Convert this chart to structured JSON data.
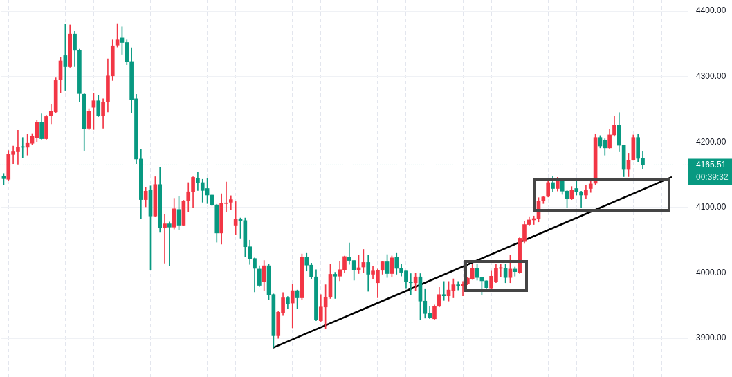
{
  "chart_data": {
    "type": "candlestick",
    "categories": [
      null,
      null,
      null,
      null,
      null,
      null,
      null,
      null,
      null,
      null,
      null,
      null,
      null,
      null,
      null,
      null,
      null,
      null,
      null,
      null,
      null,
      null,
      null,
      null,
      null,
      null,
      null,
      null,
      null,
      null,
      null,
      null,
      null,
      null,
      null,
      null,
      null,
      null,
      null,
      null,
      null,
      null,
      null,
      null,
      null,
      null,
      null,
      null,
      null,
      null,
      null,
      null,
      null,
      null,
      null,
      null,
      null,
      null,
      null,
      null,
      null,
      null,
      null,
      null,
      null,
      null,
      null,
      null,
      null,
      null,
      null,
      null,
      null,
      null,
      null,
      null,
      null,
      null,
      null,
      null,
      null,
      null,
      null,
      null,
      null,
      null,
      null,
      null,
      null,
      null,
      null,
      null,
      null,
      null,
      null,
      null,
      null,
      null,
      null,
      null,
      null,
      null,
      null,
      null,
      null,
      null,
      null,
      null,
      null,
      null,
      null,
      null,
      null,
      null,
      null,
      null,
      null,
      null,
      null,
      null,
      null,
      null,
      null,
      null,
      null,
      null,
      null,
      null,
      null,
      null,
      null,
      null,
      null,
      null,
      null,
      null,
      null,
      null,
      null,
      null,
      null,
      null,
      null,
      null,
      null
    ],
    "ohlc": [
      [
        4148,
        4152,
        4135,
        4144
      ],
      [
        4143,
        4187,
        4141,
        4181
      ],
      [
        4181,
        4194,
        4167,
        4185
      ],
      [
        4185,
        4218,
        4166,
        4192
      ],
      [
        4193,
        4207,
        4176,
        4192
      ],
      [
        4192,
        4212,
        4180,
        4198
      ],
      [
        4198,
        4213,
        4196,
        4209
      ],
      [
        4207,
        4233,
        4200,
        4230
      ],
      [
        4230,
        4243,
        4204,
        4205
      ],
      [
        4205,
        4241,
        4204,
        4239
      ],
      [
        4240,
        4258,
        4228,
        4247
      ],
      [
        4246,
        4298,
        4245,
        4294
      ],
      [
        4295,
        4330,
        4275,
        4324
      ],
      [
        4332,
        4380,
        4279,
        4315
      ],
      [
        4315,
        4379,
        4314,
        4365
      ],
      [
        4365,
        4369,
        4315,
        4340
      ],
      [
        4340,
        4342,
        4261,
        4274
      ],
      [
        4273,
        4274,
        4187,
        4220
      ],
      [
        4221,
        4251,
        4219,
        4247
      ],
      [
        4253,
        4274,
        4219,
        4263
      ],
      [
        4263,
        4271,
        4239,
        4240
      ],
      [
        4240,
        4266,
        4221,
        4261
      ],
      [
        4261,
        4327,
        4246,
        4301
      ],
      [
        4301,
        4356,
        4294,
        4347
      ],
      [
        4348,
        4381,
        4345,
        4356
      ],
      [
        4359,
        4376,
        4334,
        4352
      ],
      [
        4352,
        4356,
        4318,
        4323
      ],
      [
        4323,
        4344,
        4245,
        4265
      ],
      [
        4266,
        4273,
        4167,
        4174
      ],
      [
        4174,
        4189,
        4083,
        4112
      ],
      [
        4112,
        4131,
        4101,
        4125
      ],
      [
        4126,
        4133,
        4005,
        4087
      ],
      [
        4087,
        4147,
        4086,
        4135
      ],
      [
        4135,
        4161,
        4062,
        4069
      ],
      [
        4069,
        4090,
        4015,
        4075
      ],
      [
        4075,
        4078,
        4011,
        4070
      ],
      [
        4070,
        4114,
        4067,
        4098
      ],
      [
        4097,
        4117,
        4066,
        4073
      ],
      [
        4073,
        4111,
        4072,
        4110
      ],
      [
        4110,
        4138,
        4093,
        4124
      ],
      [
        4124,
        4147,
        4100,
        4146
      ],
      [
        4145,
        4154,
        4126,
        4138
      ],
      [
        4138,
        4143,
        4108,
        4126
      ],
      [
        4129,
        4144,
        4106,
        4119
      ],
      [
        4119,
        4119,
        4103,
        4104
      ],
      [
        4104,
        4105,
        4047,
        4061
      ],
      [
        4061,
        4121,
        4044,
        4107
      ],
      [
        4106,
        4139,
        4094,
        4107
      ],
      [
        4108,
        4118,
        4097,
        4112
      ],
      [
        4073,
        4109,
        4058,
        4082
      ],
      [
        4082,
        4084,
        4053,
        4080
      ],
      [
        4080,
        4084,
        4025,
        4040
      ],
      [
        4040,
        4050,
        4013,
        4022
      ],
      [
        4022,
        4023,
        3971,
        4007
      ],
      [
        4006,
        4011,
        3979,
        3981
      ],
      [
        3987,
        4019,
        3973,
        4011
      ],
      [
        4011,
        4013,
        3959,
        3967
      ],
      [
        3967,
        3968,
        3886,
        3904
      ],
      [
        3904,
        3941,
        3900,
        3940
      ],
      [
        3939,
        3970,
        3935,
        3962
      ],
      [
        3962,
        3964,
        3945,
        3953
      ],
      [
        3954,
        3983,
        3916,
        3973
      ],
      [
        3973,
        3974,
        3945,
        3962
      ],
      [
        3962,
        4029,
        3959,
        4024
      ],
      [
        4024,
        4030,
        4003,
        4012
      ],
      [
        4012,
        4015,
        3991,
        3994
      ],
      [
        3994,
        4005,
        3927,
        3928
      ],
      [
        3927,
        3967,
        3926,
        3948
      ],
      [
        3948,
        3982,
        3915,
        3963
      ],
      [
        3963,
        4013,
        3961,
        3998
      ],
      [
        3998,
        4001,
        3961,
        3995
      ],
      [
        3995,
        4018,
        3988,
        4005
      ],
      [
        4005,
        4026,
        4000,
        4025
      ],
      [
        4024,
        4046,
        4013,
        4019
      ],
      [
        4019,
        4019,
        3989,
        4005
      ],
      [
        4005,
        4027,
        3999,
        4008
      ],
      [
        4009,
        4036,
        4000,
        4016
      ],
      [
        4016,
        4027,
        3972,
        3998
      ],
      [
        3998,
        4010,
        3991,
        4003
      ],
      [
        3985,
        4006,
        3962,
        4004
      ],
      [
        4004,
        4018,
        3998,
        4017
      ],
      [
        4017,
        4028,
        3993,
        3999
      ],
      [
        3999,
        4026,
        3994,
        4023
      ],
      [
        4024,
        4030,
        3998,
        4007
      ],
      [
        4007,
        4014,
        3995,
        4001
      ],
      [
        4003,
        4003,
        3976,
        3987
      ],
      [
        3986,
        3999,
        3967,
        3985
      ],
      [
        3985,
        4000,
        3973,
        3994
      ],
      [
        3994,
        3999,
        3929,
        3957
      ],
      [
        3957,
        3975,
        3931,
        3938
      ],
      [
        3938,
        3949,
        3930,
        3932
      ],
      [
        3930,
        3951,
        3929,
        3949
      ],
      [
        3949,
        3978,
        3948,
        3967
      ],
      [
        3967,
        3987,
        3958,
        3965
      ],
      [
        3965,
        3987,
        3957,
        3974
      ],
      [
        3973,
        3991,
        3962,
        3982
      ],
      [
        3982,
        3987,
        3974,
        3980
      ],
      [
        3980,
        3987,
        3965,
        3983
      ],
      [
        3983,
        3993,
        3982,
        3992
      ],
      [
        3991,
        4014,
        3990,
        4007
      ],
      [
        4007,
        4014,
        3989,
        3993
      ],
      [
        3993,
        3993,
        3966,
        3988
      ],
      [
        3988,
        3988,
        3976,
        3977
      ],
      [
        3976,
        4003,
        3974,
        3995
      ],
      [
        3987,
        4013,
        3985,
        4007
      ],
      [
        4007,
        4014,
        3994,
        4008
      ],
      [
        4007,
        4013,
        3985,
        3993
      ],
      [
        3993,
        4027,
        3985,
        4006
      ],
      [
        4006,
        4009,
        3995,
        4002
      ],
      [
        4000,
        4054,
        3999,
        4053
      ],
      [
        4048,
        4079,
        4045,
        4074
      ],
      [
        4074,
        4086,
        4072,
        4081
      ],
      [
        4081,
        4087,
        4074,
        4083
      ],
      [
        4083,
        4115,
        4078,
        4110
      ],
      [
        4110,
        4117,
        4106,
        4116
      ],
      [
        4117,
        4141,
        4116,
        4138
      ],
      [
        4138,
        4148,
        4124,
        4129
      ],
      [
        4129,
        4146,
        4125,
        4143
      ],
      [
        4143,
        4144,
        4120,
        4125
      ],
      [
        4125,
        4126,
        4100,
        4114
      ],
      [
        4113,
        4132,
        4112,
        4126
      ],
      [
        4129,
        4144,
        4119,
        4124
      ],
      [
        4124,
        4125,
        4100,
        4119
      ],
      [
        4119,
        4134,
        4113,
        4127
      ],
      [
        4129,
        4140,
        4123,
        4136
      ],
      [
        4137,
        4212,
        4135,
        4207
      ],
      [
        4207,
        4210,
        4191,
        4194
      ],
      [
        4203,
        4205,
        4180,
        4191
      ],
      [
        4191,
        4219,
        4190,
        4211
      ],
      [
        4211,
        4239,
        4209,
        4226
      ],
      [
        4226,
        4245,
        4185,
        4195
      ],
      [
        4195,
        4195,
        4147,
        4158
      ],
      [
        4158,
        4183,
        4147,
        4172
      ],
      [
        4173,
        4211,
        4172,
        4207
      ],
      [
        4207,
        4212,
        4170,
        4175
      ],
      [
        4175,
        4186,
        4159,
        4165.51
      ],
      null,
      null,
      null,
      null,
      null,
      null,
      null,
      null,
      null
    ],
    "colors": [
      "#089981",
      "#f23645",
      "#f23645",
      "#f23645",
      "#089981",
      "#f23645",
      "#f23645",
      "#f23645",
      "#089981",
      "#f23645",
      "#f23645",
      "#f23645",
      "#f23645",
      "#089981",
      "#f23645",
      "#089981",
      "#089981",
      "#089981",
      "#f23645",
      "#f23645",
      "#089981",
      "#f23645",
      "#f23645",
      "#f23645",
      "#f23645",
      "#089981",
      "#089981",
      "#089981",
      "#089981",
      "#089981",
      "#f23645",
      "#089981",
      "#f23645",
      "#089981",
      "#f23645",
      "#089981",
      "#f23645",
      "#089981",
      "#f23645",
      "#f23645",
      "#f23645",
      "#089981",
      "#089981",
      "#089981",
      "#089981",
      "#089981",
      "#f23645",
      "#f23645",
      "#f23645",
      "#f23645",
      "#089981",
      "#089981",
      "#089981",
      "#089981",
      "#089981",
      "#f23645",
      "#089981",
      "#089981",
      "#f23645",
      "#f23645",
      "#089981",
      "#f23645",
      "#089981",
      "#f23645",
      "#089981",
      "#089981",
      "#089981",
      "#f23645",
      "#f23645",
      "#f23645",
      "#089981",
      "#f23645",
      "#f23645",
      "#089981",
      "#089981",
      "#f23645",
      "#f23645",
      "#089981",
      "#f23645",
      "#f23645",
      "#f23645",
      "#089981",
      "#f23645",
      "#089981",
      "#089981",
      "#089981",
      "#089981",
      "#f23645",
      "#089981",
      "#089981",
      "#089981",
      "#f23645",
      "#f23645",
      "#089981",
      "#f23645",
      "#f23645",
      "#089981",
      "#f23645",
      "#f23645",
      "#f23645",
      "#089981",
      "#089981",
      "#089981",
      "#f23645",
      "#f23645",
      "#f23645",
      "#089981",
      "#f23645",
      "#089981",
      "#f23645",
      "#f23645",
      "#f23645",
      "#f23645",
      "#f23645",
      "#f23645",
      "#f23645",
      "#089981",
      "#f23645",
      "#089981",
      "#089981",
      "#f23645",
      "#089981",
      "#089981",
      "#f23645",
      "#f23645",
      "#f23645",
      "#089981",
      "#089981",
      "#f23645",
      "#f23645",
      "#089981",
      "#089981",
      "#f23645",
      "#f23645",
      "#089981",
      "#089981",
      null,
      null,
      null,
      null,
      null,
      null,
      null,
      null,
      null
    ],
    "series": [
      {
        "type": "line",
        "color": "#000000",
        "values": [
          null,
          null,
          null,
          null,
          null,
          null,
          null,
          null,
          null,
          null,
          null,
          null,
          null,
          null,
          null,
          null,
          null,
          null,
          null,
          null,
          null,
          null,
          null,
          null,
          null,
          null,
          null,
          null,
          null,
          null,
          null,
          null,
          null,
          null,
          null,
          null,
          null,
          null,
          null,
          null,
          null,
          null,
          null,
          null,
          null,
          null,
          null,
          null,
          null,
          null,
          null,
          null,
          null,
          null,
          null,
          null,
          null,
          3886,
          null,
          null,
          null,
          null,
          null,
          null,
          null,
          null,
          null,
          null,
          null,
          null,
          null,
          null,
          null,
          null,
          null,
          null,
          null,
          null,
          null,
          null,
          null,
          null,
          null,
          null,
          null,
          null,
          null,
          null,
          null,
          null,
          null,
          null,
          null,
          null,
          null,
          null,
          null,
          null,
          null,
          null,
          null,
          null,
          null,
          null,
          null,
          null,
          null,
          null,
          null,
          null,
          null,
          null,
          null,
          null,
          null,
          null,
          null,
          null,
          null,
          null,
          null,
          null,
          null,
          null,
          null,
          null,
          null,
          null,
          null,
          null,
          null,
          null,
          null,
          null,
          null,
          null,
          null,
          null,
          null,
          null,
          null,
          4146,
          null,
          null,
          null
        ]
      }
    ],
    "ylim": [
      3841,
      4417
    ],
    "yticks": [
      {
        "value": 3900,
        "label": "3900.00"
      },
      {
        "value": 4000,
        "label": "4000.00"
      },
      {
        "value": 4100,
        "label": "4100.00"
      },
      {
        "value": 4200,
        "label": "4200.00"
      },
      {
        "value": 4300,
        "label": "4300.00"
      },
      {
        "value": 4400,
        "label": "4400.00"
      }
    ],
    "ref_lines": [
      {
        "axis": "y",
        "value": 4165.51,
        "label": "4165.51",
        "color": "#089981",
        "line_style": "dotted"
      }
    ],
    "annotations": [
      "00:39:32"
    ],
    "grid": true,
    "tick_labels": "y"
  }
}
